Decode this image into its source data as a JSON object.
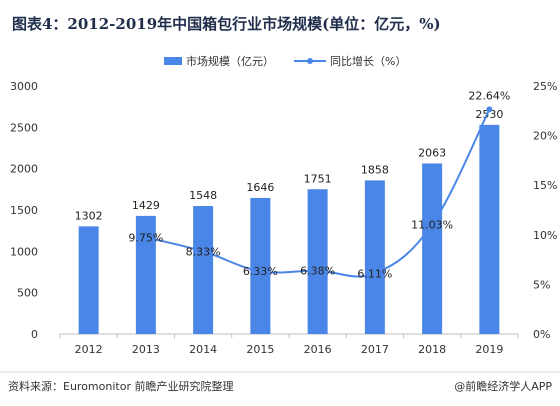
{
  "chart_data": {
    "type": "bar",
    "title": "图表4：2012-2019年中国箱包行业市场规模(单位：亿元，%)",
    "categories": [
      "2012",
      "2013",
      "2014",
      "2015",
      "2016",
      "2017",
      "2018",
      "2019"
    ],
    "series": [
      {
        "name": "市场规模（亿元）",
        "type": "bar",
        "axis": "left",
        "values": [
          1302,
          1429,
          1548,
          1646,
          1751,
          1858,
          2063,
          2530
        ],
        "labels": [
          "1302",
          "1429",
          "1548",
          "1646",
          "1751",
          "1858",
          "2063",
          "2530"
        ]
      },
      {
        "name": "同比增长（%）",
        "type": "line",
        "axis": "right",
        "values": [
          null,
          9.75,
          8.33,
          6.33,
          6.38,
          6.11,
          11.03,
          22.64
        ],
        "labels": [
          "",
          "9.75%",
          "8.33%",
          "6.33%",
          "6.38%",
          "6.11%",
          "11.03%",
          "22.64%"
        ]
      }
    ],
    "ylim_left": [
      0,
      3000
    ],
    "yticks_left": [
      "0",
      "500",
      "1000",
      "1500",
      "2000",
      "2500",
      "3000"
    ],
    "ylim_right": [
      0,
      25
    ],
    "yticks_right": [
      "0%",
      "5%",
      "10%",
      "15%",
      "20%",
      "25%"
    ],
    "legend_position": "top-center",
    "grid": false,
    "colors": {
      "bar": "#4a86e8",
      "line": "#4a86e8"
    }
  },
  "footer": {
    "source": "资料来源：Euromonitor 前瞻产业研究院整理",
    "brand": "@前瞻经济学人APP"
  }
}
